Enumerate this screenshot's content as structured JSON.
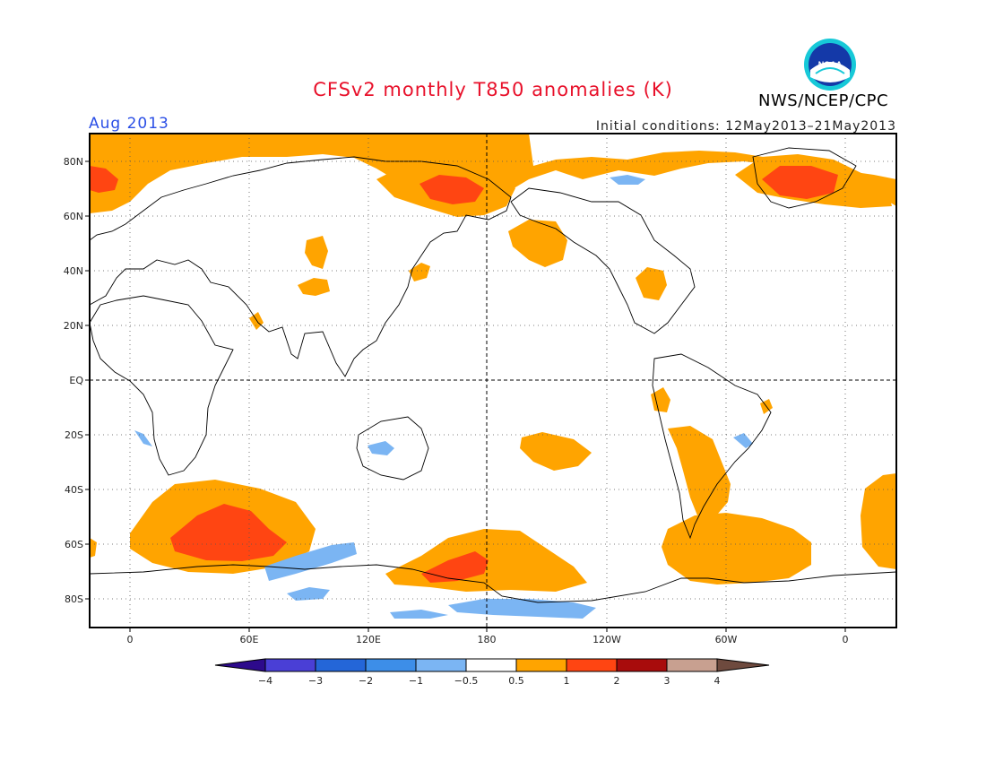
{
  "header": {
    "title": "CFSv2 monthly T850 anomalies (K)",
    "month": "Aug 2013",
    "initial_conditions": "Initial conditions: 12May2013–21May2013",
    "agency": "NWS/NCEP/CPC",
    "logo_text": "NOAA"
  },
  "map": {
    "lat_labels": [
      "80N",
      "60N",
      "40N",
      "20N",
      "EQ",
      "20S",
      "40S",
      "60S",
      "80S"
    ],
    "lon_labels": [
      "0",
      "60E",
      "120E",
      "180",
      "120W",
      "60W",
      "0"
    ],
    "grid": "dotted"
  },
  "colorbar": {
    "labels": [
      "−4",
      "−3",
      "−2",
      "−1",
      "−0.5",
      "0.5",
      "1",
      "2",
      "3",
      "4"
    ],
    "colors": [
      "#2d0a8c",
      "#4a3fd6",
      "#2466d8",
      "#3d8ee8",
      "#7bb5f3",
      "#ffffff",
      "#ffa400",
      "#ff4512",
      "#a80c0c",
      "#c8a090",
      "#6e4a3e"
    ]
  },
  "colors": {
    "title": "#e8102a",
    "month": "#2b4fe6",
    "anom_05_1": "#ffa400",
    "anom_1_2": "#ff4512",
    "anom_neg_05_1": "#7bb5f3"
  }
}
